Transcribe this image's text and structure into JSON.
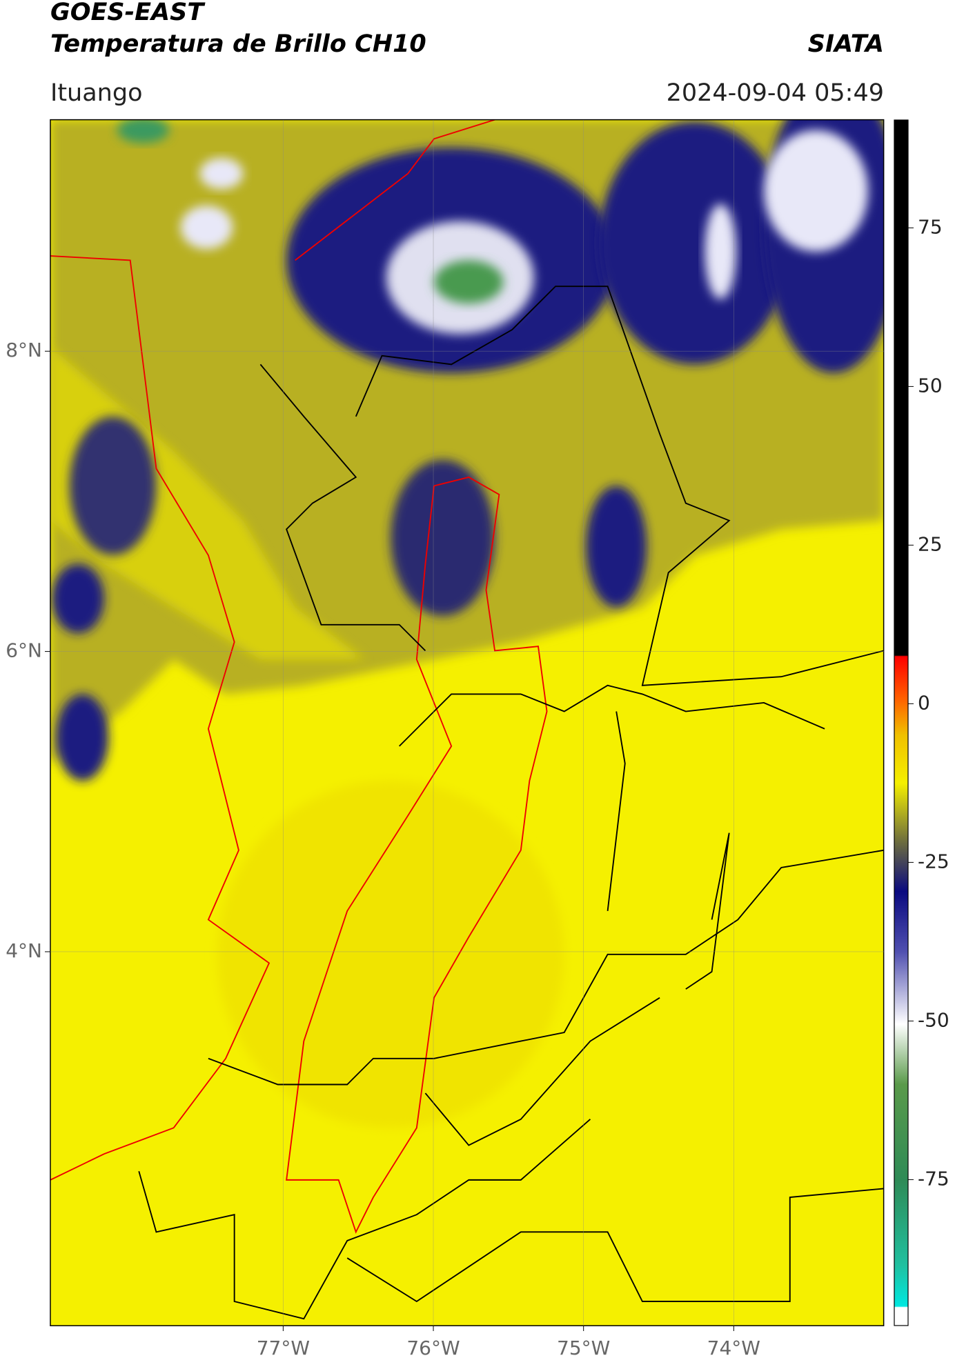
{
  "header": {
    "title": "GOES-EAST",
    "subtitle": "Temperatura de Brillo CH10",
    "brand": "SIATA",
    "location": "Ituango",
    "datetime": "2024-09-04 05:49"
  },
  "map": {
    "xlim": [
      -78.55,
      -73.0
    ],
    "ylim": [
      1.51,
      9.54
    ],
    "xticks": [
      {
        "value": -77,
        "label": "77°W"
      },
      {
        "value": -76,
        "label": "76°W"
      },
      {
        "value": -75,
        "label": "75°W"
      },
      {
        "value": -74,
        "label": "74°W"
      }
    ],
    "yticks": [
      {
        "value": 8,
        "label": "8°N"
      },
      {
        "value": 6,
        "label": "6°N"
      },
      {
        "value": 4,
        "label": "4°N"
      }
    ]
  },
  "colorbar": {
    "lim": [
      -98,
      92
    ],
    "ticks": [
      75,
      50,
      25,
      0,
      -25,
      -50,
      -75
    ]
  }
}
